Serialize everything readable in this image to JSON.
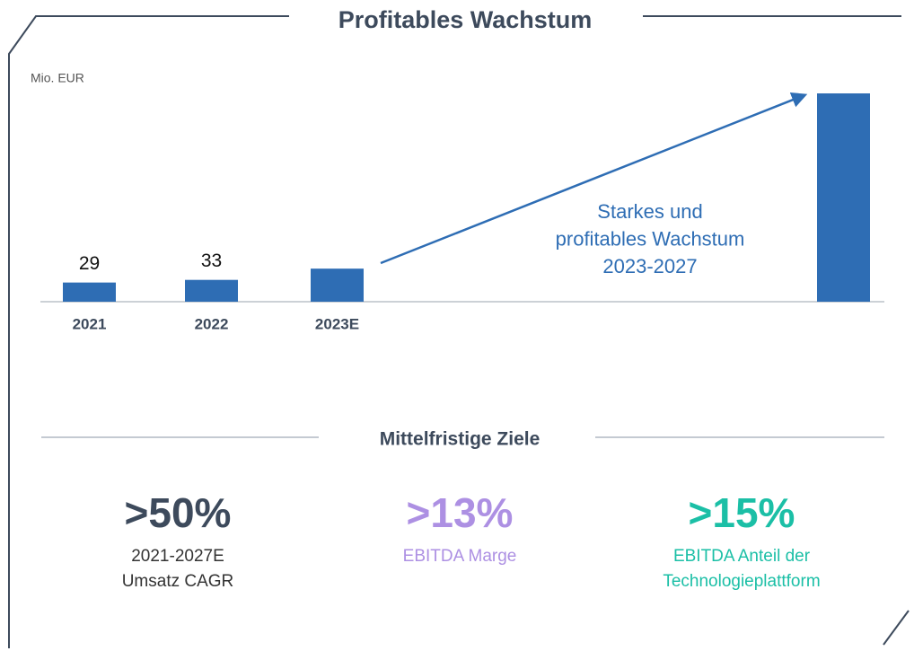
{
  "chart_data": {
    "type": "bar",
    "title": "Profitables Wachstum",
    "unit": "Mio. EUR",
    "categories": [
      "2021",
      "2022",
      "2023E",
      null
    ],
    "values": [
      29,
      33,
      50,
      315
    ],
    "value_labels": [
      "29",
      "33",
      null,
      null
    ],
    "color": "#2e6db4",
    "annotation": [
      "Starkes und",
      "profitables Wachstum",
      "2023-2027"
    ]
  },
  "targets": {
    "title": "Mittelfristige Ziele",
    "items": [
      {
        "value": ">50%",
        "lines": [
          "2021-2027E",
          "Umsatz CAGR"
        ],
        "color": "#3d4a5c"
      },
      {
        "value": ">13%",
        "lines": [
          "EBITDA Marge"
        ],
        "color": "#ad90e3"
      },
      {
        "value": ">15%",
        "lines": [
          "EBITDA Anteil der",
          "Technologieplattform"
        ],
        "color": "#1bbfa6"
      }
    ]
  }
}
